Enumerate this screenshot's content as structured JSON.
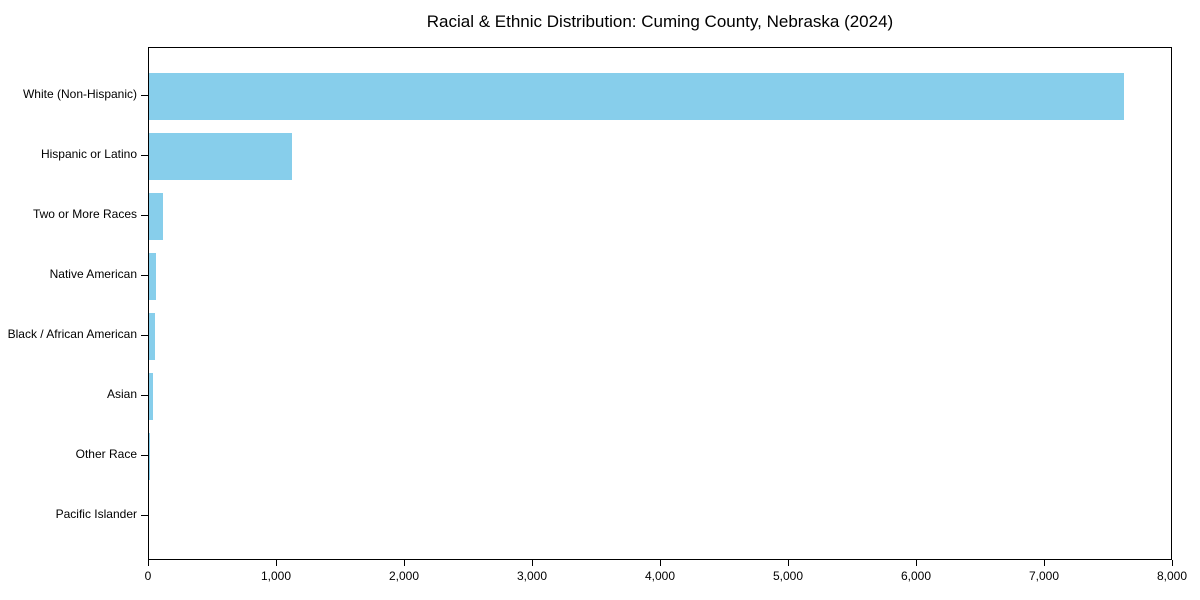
{
  "chart_data": {
    "type": "bar",
    "orientation": "horizontal",
    "title": "Racial & Ethnic Distribution: Cuming County, Nebraska (2024)",
    "categories": [
      "White (Non-Hispanic)",
      "Hispanic or Latino",
      "Two or More Races",
      "Native American",
      "Black / African American",
      "Asian",
      "Other Race",
      "Pacific Islander"
    ],
    "values": [
      7620,
      1115,
      113,
      55,
      45,
      35,
      5,
      0
    ],
    "bar_color": "#87CEEB",
    "xlabel": "",
    "ylabel": "",
    "xlim": [
      0,
      8000
    ],
    "x_ticks": [
      0,
      1000,
      2000,
      3000,
      4000,
      5000,
      6000,
      7000,
      8000
    ],
    "x_tick_labels": [
      "0",
      "1,000",
      "2,000",
      "3,000",
      "4,000",
      "5,000",
      "6,000",
      "7,000",
      "8,000"
    ],
    "grid": false,
    "legend": null,
    "background_color": "#ffffff",
    "text_color": "#000000",
    "spine_color": "#000000"
  }
}
